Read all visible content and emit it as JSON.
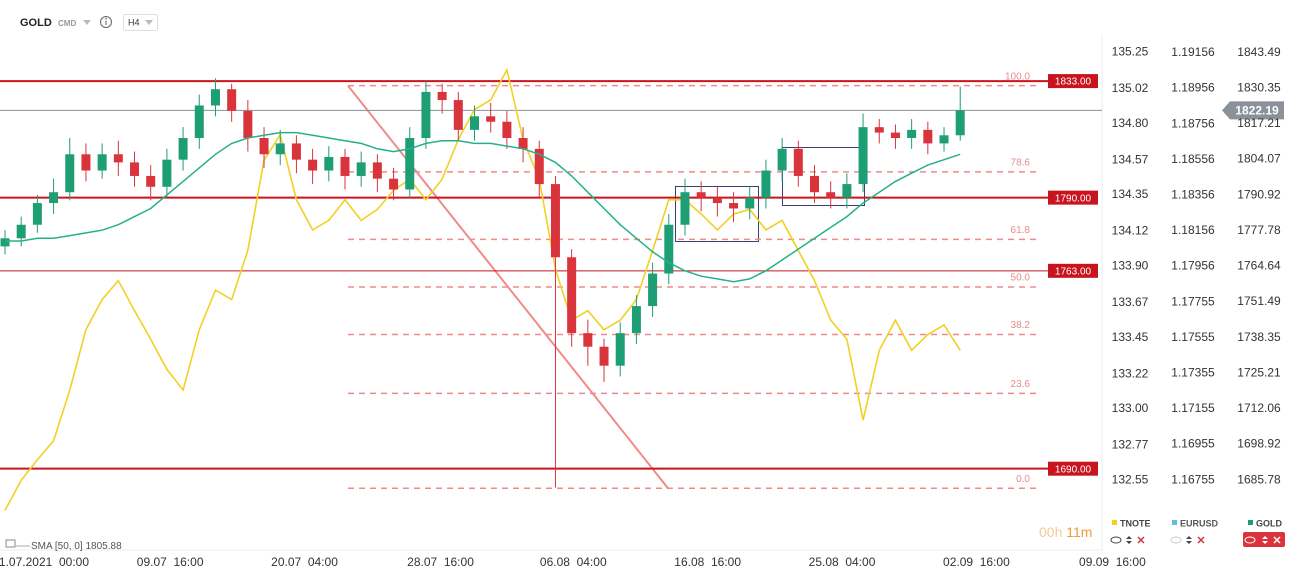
{
  "header": {
    "symbol": "GOLD",
    "class": "CMD",
    "timeframe": "H4"
  },
  "countdown": {
    "hours": "00h",
    "minutes": "11m"
  },
  "chart_data": {
    "type": "candlestick",
    "x": [
      0,
      1,
      2,
      3,
      4,
      5,
      6,
      7,
      8,
      9,
      10,
      11,
      12,
      13,
      14,
      15,
      16,
      17,
      18,
      19,
      20,
      21,
      22,
      23,
      24,
      25,
      26,
      27,
      28,
      29,
      30,
      31,
      32,
      33,
      34,
      35,
      36,
      37,
      38,
      39,
      40,
      41,
      42,
      43,
      44,
      45,
      46,
      47,
      48,
      49,
      50,
      51,
      52,
      53,
      54,
      55,
      56,
      57,
      58,
      59
    ],
    "xlim": [
      0,
      70
    ],
    "xticks": [
      {
        "value": 2.2,
        "label": "01.07.2021  00:00"
      },
      {
        "value": 10.2,
        "label": "09.07  16:00"
      },
      {
        "value": 18.5,
        "label": "20.07  04:00"
      },
      {
        "value": 26.9,
        "label": "28.07  16:00"
      },
      {
        "value": 35.1,
        "label": "06.08  04:00"
      },
      {
        "value": 43.4,
        "label": "16.08  16:00"
      },
      {
        "value": 51.7,
        "label": "25.08  04:00"
      },
      {
        "value": 60.0,
        "label": "02.09  16:00"
      },
      {
        "value": 68.4,
        "label": "09.09  16:00"
      }
    ],
    "ylim": [
      132.11,
      135.36
    ],
    "yticks": [
      135.25,
      135.02,
      {
        "value": 134.8,
        "label": "134.80"
      },
      134.57,
      134.35,
      134.12,
      {
        "value": 133.9,
        "label": "133.90"
      },
      133.67,
      133.45,
      133.22,
      {
        "value": 133,
        "label": "133.00"
      },
      132.77,
      132.55
    ],
    "y2lim": [
      1.16362,
      1.19257
    ],
    "y2ticks": [
      1.19156,
      1.18956,
      1.18756,
      1.18556,
      1.18356,
      1.18156,
      1.17956,
      1.17755,
      1.17555,
      1.17355,
      1.17155,
      1.16955,
      1.16755
    ],
    "y3lim": [
      1660,
      1850
    ],
    "y3ticks": [
      1843.49,
      1830.35,
      1817.21,
      1804.07,
      1790.92,
      1777.78,
      1764.64,
      1751.49,
      1738.35,
      1725.21,
      1712.06,
      1698.92,
      1685.78
    ],
    "series": [
      {
        "name": "TNOTE",
        "color": "#f2d024",
        "axis": "y",
        "visible": true,
        "values": [
          132.36,
          132.55,
          132.68,
          132.8,
          133.12,
          133.5,
          133.69,
          133.81,
          133.62,
          133.44,
          133.25,
          133.12,
          133.5,
          133.75,
          133.69,
          134,
          134.57,
          134.73,
          134.32,
          134.13,
          134.19,
          134.32,
          134.19,
          134.26,
          134.38,
          134.45,
          134.32,
          134.45,
          134.7,
          134.89,
          134.95,
          135.14,
          134.7,
          134.45,
          133.88,
          133.56,
          133.62,
          133.5,
          133.56,
          133.69,
          134,
          134.32,
          134.32,
          134.23,
          134.13,
          134.23,
          134.26,
          134.13,
          134.19,
          134,
          133.81,
          133.56,
          133.44,
          132.93,
          133.37,
          133.56,
          133.37,
          133.47,
          133.53,
          133.37
        ]
      },
      {
        "name": "EURUSD",
        "color": "#5bc0de",
        "axis": "y2",
        "visible": false
      },
      {
        "name": "GOLD",
        "color": "#1e9e74",
        "down_color": "#d9343c",
        "axis": "y3",
        "visible": true,
        "open": [
          1772,
          1775,
          1780,
          1788,
          1792,
          1806,
          1800,
          1806,
          1803,
          1798,
          1794,
          1804,
          1812,
          1824,
          1830,
          1822,
          1812,
          1806,
          1810,
          1804,
          1800,
          1805,
          1798,
          1803,
          1797,
          1793,
          1812,
          1829,
          1826,
          1815,
          1820,
          1818,
          1812,
          1808,
          1795,
          1768,
          1740,
          1735,
          1728,
          1740,
          1750,
          1762,
          1780,
          1792,
          1790,
          1788,
          1786,
          1790,
          1800,
          1808,
          1798,
          1792,
          1790,
          1795,
          1816,
          1814,
          1812,
          1815,
          1810,
          1813
        ],
        "high": [
          1778,
          1783,
          1791,
          1797,
          1812,
          1810,
          1810,
          1811,
          1807,
          1802,
          1808,
          1816,
          1828,
          1834,
          1832,
          1826,
          1816,
          1815,
          1813,
          1808,
          1809,
          1808,
          1807,
          1806,
          1801,
          1816,
          1833,
          1832,
          1829,
          1824,
          1825,
          1822,
          1816,
          1811,
          1798,
          1771,
          1745,
          1738,
          1744,
          1754,
          1766,
          1784,
          1797,
          1796,
          1794,
          1792,
          1794,
          1804,
          1812,
          1811,
          1802,
          1796,
          1799,
          1821,
          1819,
          1817,
          1819,
          1818,
          1816,
          1831
        ],
        "low": [
          1769,
          1772,
          1777,
          1784,
          1789,
          1796,
          1797,
          1798,
          1794,
          1789,
          1790,
          1800,
          1808,
          1820,
          1818,
          1807,
          1801,
          1802,
          1799,
          1795,
          1796,
          1793,
          1794,
          1792,
          1789,
          1790,
          1808,
          1821,
          1811,
          1811,
          1814,
          1808,
          1803,
          1790,
          1683,
          1735,
          1728,
          1722,
          1724,
          1736,
          1746,
          1758,
          1776,
          1785,
          1783,
          1781,
          1782,
          1786,
          1796,
          1794,
          1788,
          1786,
          1786,
          1792,
          1810,
          1808,
          1808,
          1806,
          1807,
          1811
        ],
        "close": [
          1775,
          1780,
          1788,
          1792,
          1806,
          1800,
          1806,
          1803,
          1798,
          1794,
          1804,
          1812,
          1824,
          1830,
          1822,
          1812,
          1806,
          1810,
          1804,
          1800,
          1805,
          1798,
          1803,
          1797,
          1793,
          1812,
          1829,
          1826,
          1815,
          1820,
          1818,
          1812,
          1808,
          1795,
          1768,
          1740,
          1735,
          1728,
          1740,
          1750,
          1762,
          1780,
          1792,
          1790,
          1788,
          1786,
          1790,
          1800,
          1808,
          1798,
          1792,
          1790,
          1795,
          1816,
          1814,
          1812,
          1815,
          1810,
          1813,
          1822.19
        ]
      }
    ],
    "sma": {
      "label": "SMA [50, 0]",
      "last": 1805.88,
      "color": "#26b08a",
      "values": [
        1774,
        1774,
        1775,
        1775,
        1776,
        1777,
        1778,
        1780,
        1783,
        1786,
        1791,
        1796,
        1801,
        1806,
        1810,
        1812,
        1813,
        1814,
        1814,
        1813,
        1812,
        1811,
        1810,
        1808,
        1807,
        1808,
        1810,
        1811,
        1811,
        1810,
        1810,
        1809,
        1808,
        1806,
        1803,
        1798,
        1792,
        1786,
        1780,
        1775,
        1770,
        1766,
        1763,
        1761,
        1760,
        1759,
        1760,
        1763,
        1767,
        1771,
        1775,
        1779,
        1783,
        1788,
        1792,
        1796,
        1799,
        1802,
        1804,
        1806
      ]
    },
    "levels": [
      {
        "value": 1833,
        "label": "1833.00"
      },
      {
        "value": 1790,
        "label": "1790.00"
      },
      {
        "value": 1763,
        "label": "1763.00"
      },
      {
        "value": 1690,
        "label": "1690.00"
      }
    ],
    "last_price": 1822.19,
    "fibonacci": [
      {
        "level": {
          "value": 100,
          "label": "100.0"
        },
        "price": 1831.3
      },
      {
        "level": 78.6,
        "price": 1799.5
      },
      {
        "level": 61.8,
        "price": 1774.6
      },
      {
        "level": {
          "value": 50,
          "label": "50.0"
        },
        "price": 1757.05
      },
      {
        "level": 38.2,
        "price": 1739.5
      },
      {
        "level": 23.6,
        "price": 1717.8
      },
      {
        "level": {
          "value": 0,
          "label": "0.0"
        },
        "price": 1682.8
      }
    ]
  }
}
